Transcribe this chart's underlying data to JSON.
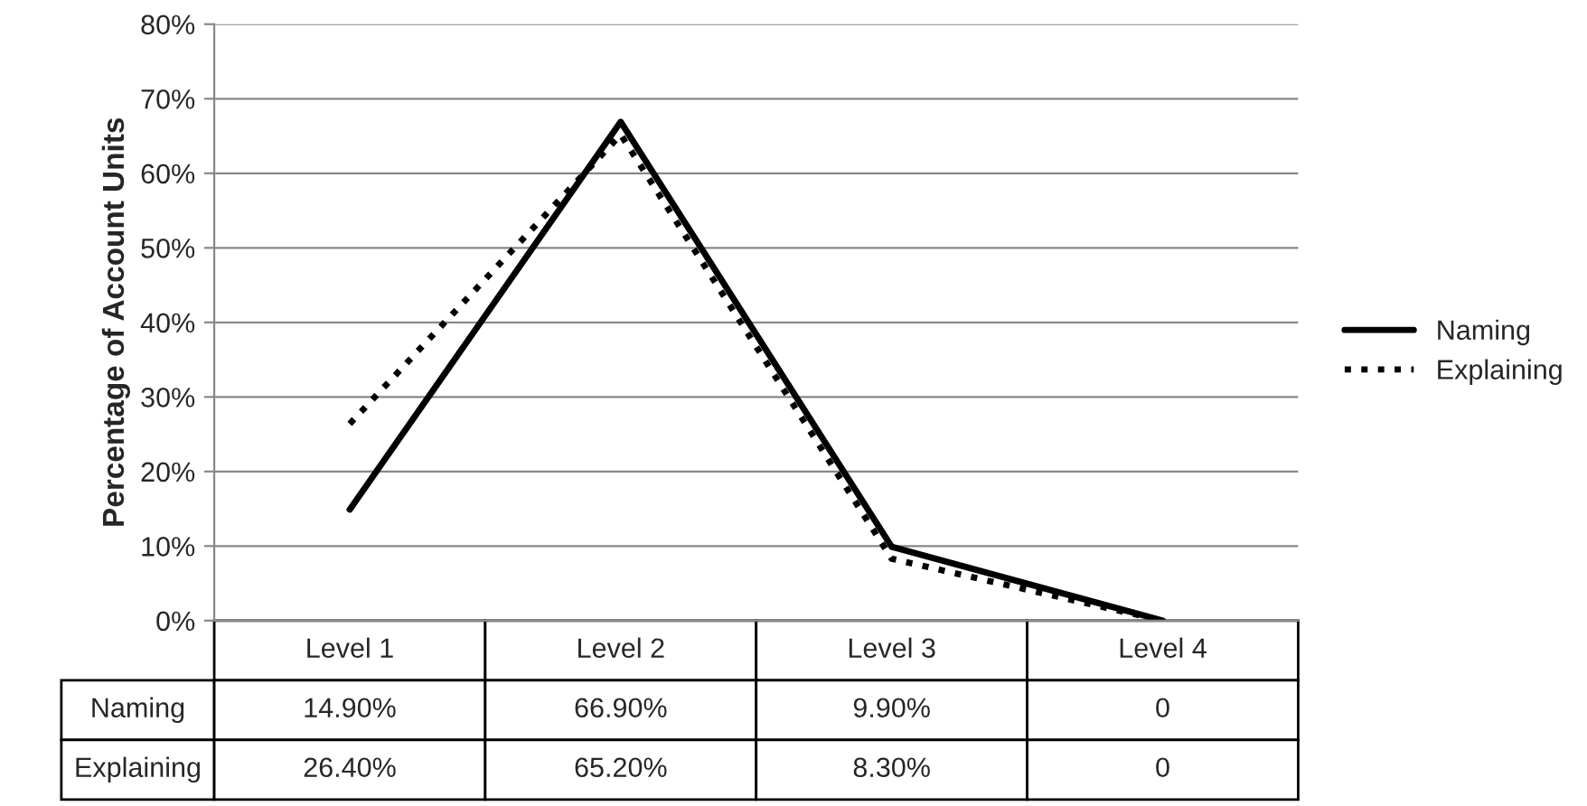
{
  "chart_data": {
    "type": "line",
    "ylabel": "Percentage of Account Units",
    "categories": [
      "Level 1",
      "Level 2",
      "Level 3",
      "Level 4"
    ],
    "series": [
      {
        "name": "Naming",
        "color": "#000000",
        "line_style": "solid",
        "values": [
          14.9,
          66.9,
          9.9,
          0
        ],
        "value_labels": [
          "14.90%",
          "66.90%",
          "9.90%",
          "0"
        ]
      },
      {
        "name": "Explaining",
        "color": "#000000",
        "line_style": "dotted",
        "values": [
          26.4,
          65.2,
          8.3,
          0
        ],
        "value_labels": [
          "26.40%",
          "65.20%",
          "8.30%",
          "0"
        ]
      }
    ],
    "ylim": [
      0,
      80
    ],
    "yticks": [
      {
        "value": 0,
        "label": "0%"
      },
      {
        "value": 10,
        "label": "10%"
      },
      {
        "value": 20,
        "label": "20%"
      },
      {
        "value": 30,
        "label": "30%"
      },
      {
        "value": 40,
        "label": "40%"
      },
      {
        "value": 50,
        "label": "50%"
      },
      {
        "value": 60,
        "label": "60%"
      },
      {
        "value": 70,
        "label": "70%"
      },
      {
        "value": 80,
        "label": "80%"
      }
    ],
    "grid": "y",
    "legend": "right"
  }
}
